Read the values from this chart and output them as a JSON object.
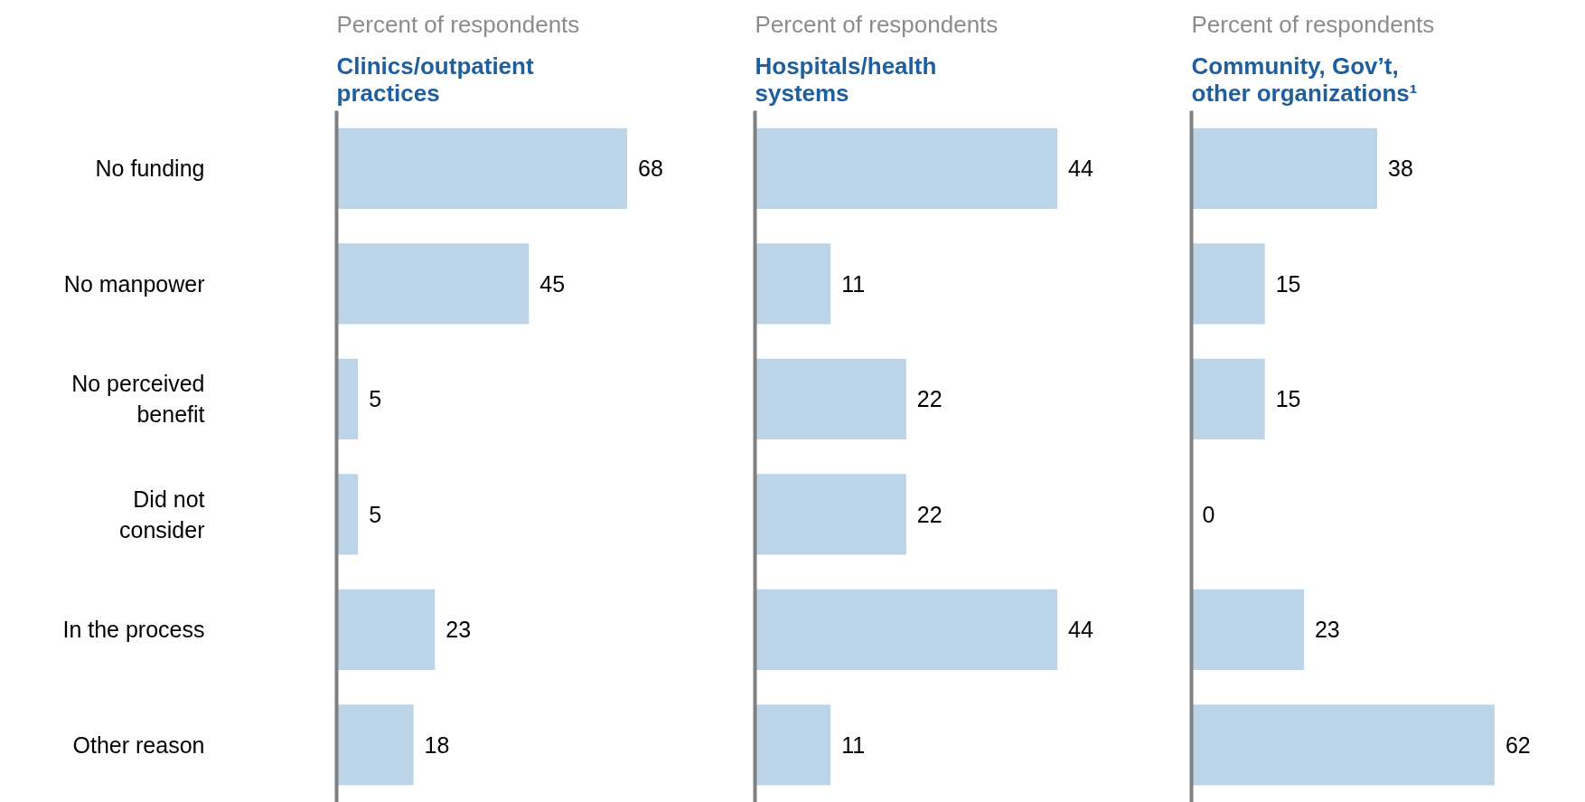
{
  "chart_data": [
    {
      "type": "bar",
      "orientation": "horizontal",
      "title": "Clinics/outpatient practices",
      "subtitle": "Percent of respondents",
      "categories": [
        "No funding",
        "No manpower",
        "No perceived benefit",
        "Did not consider",
        "In the process",
        "Other reason"
      ],
      "values": [
        68,
        45,
        5,
        5,
        23,
        18
      ],
      "color": "#bcd4e7",
      "data_labels": true,
      "tick_labels": "y"
    },
    {
      "type": "bar",
      "orientation": "horizontal",
      "title": "Hospitals/health systems",
      "subtitle": "Percent of respondents",
      "categories": [
        "No funding",
        "No manpower",
        "No perceived benefit",
        "Did not consider",
        "In the process",
        "Other reason"
      ],
      "values": [
        44,
        11,
        22,
        22,
        44,
        11
      ],
      "color": "#bcd4e7",
      "data_labels": true,
      "tick_labels": false
    },
    {
      "type": "bar",
      "orientation": "horizontal",
      "title": "Community, Gov’t, other organizations¹",
      "subtitle": "Percent of respondents",
      "categories": [
        "No funding",
        "No manpower",
        "No perceived benefit",
        "Did not consider",
        "In the process",
        "Other reason"
      ],
      "values": [
        38,
        15,
        15,
        0,
        23,
        62
      ],
      "color": "#bcd4e7",
      "data_labels": true,
      "tick_labels": false
    }
  ]
}
